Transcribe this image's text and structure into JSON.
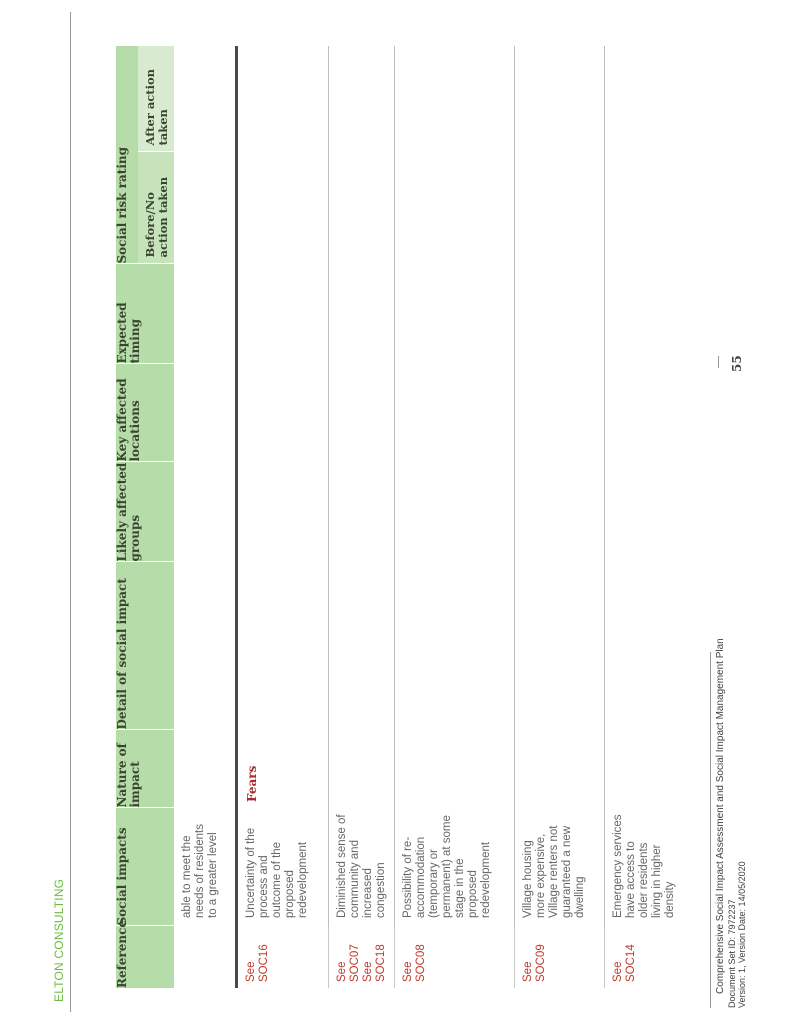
{
  "header": {
    "brand": "ELTON CONSULTING"
  },
  "table": {
    "columns": {
      "reference": "Reference",
      "social_impacts": "Social impacts",
      "nature": "Nature of impact",
      "detail": "Detail of social impact",
      "groups": "Likely affected groups",
      "locations": "Key affected locations",
      "timing": "Expected timing",
      "risk": "Social risk rating",
      "risk_before": "Before/No action taken",
      "risk_after": "After action taken"
    },
    "continuation_text": "able to meet the needs of residents to a greater level",
    "category": "Fears",
    "rows": [
      {
        "refs": [
          "See SOC16"
        ],
        "impact": "Uncertainty of the process and outcome of the proposed redevelopment"
      },
      {
        "refs": [
          "See SOC07",
          "See SOC18"
        ],
        "impact": "Diminished sense of community and increased congestion"
      },
      {
        "refs": [
          "See SOC08"
        ],
        "impact": "Possibility of re-accommodation (temporary or permanent) at some stage in the proposed redevelopment"
      },
      {
        "refs": [
          "See SOC09"
        ],
        "impact": "Village housing more expensive, Village renters not guaranteed a new dwelling"
      },
      {
        "refs": [
          "See SOC14"
        ],
        "impact": "Emergency services have access to older residents living in higher density"
      }
    ]
  },
  "footer": {
    "title": "Comprehensive Social Impact Assessment and Social Impact Management Plan",
    "doc_id": "Document Set ID: 7972237",
    "version": "Version: 1, Version Date: 14/05/2020",
    "page_number": "55"
  }
}
